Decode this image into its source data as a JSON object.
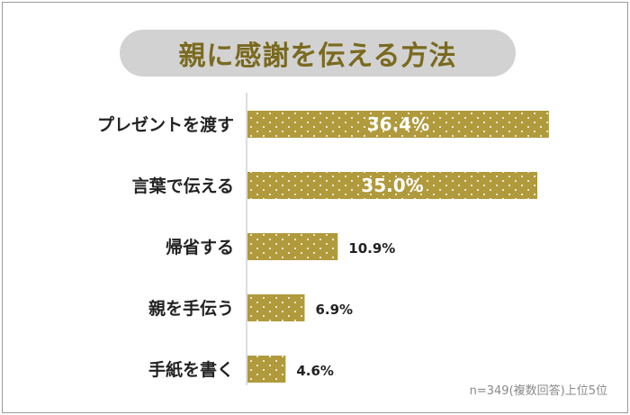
{
  "note": "n=349(複数回答)上位5位",
  "chart_data": {
    "type": "bar",
    "orientation": "horizontal",
    "title": "親に感謝を伝える方法",
    "categories": [
      "プレゼントを渡す",
      "言葉で伝える",
      "帰省する",
      "親を手伝う",
      "手紙を書く"
    ],
    "values": [
      36.4,
      35.0,
      10.9,
      6.9,
      4.6
    ],
    "value_labels": [
      "36.4%",
      "35.0%",
      "10.9%",
      "6.9%",
      "4.6%"
    ],
    "unit": "%",
    "xlim": [
      0,
      40
    ],
    "grid": false,
    "legend": "none",
    "colors": {
      "bar": "#b09a3c",
      "dot": "#ffffff",
      "title_bg": "#d2d2d2",
      "title_text": "#7a6a1f"
    }
  }
}
